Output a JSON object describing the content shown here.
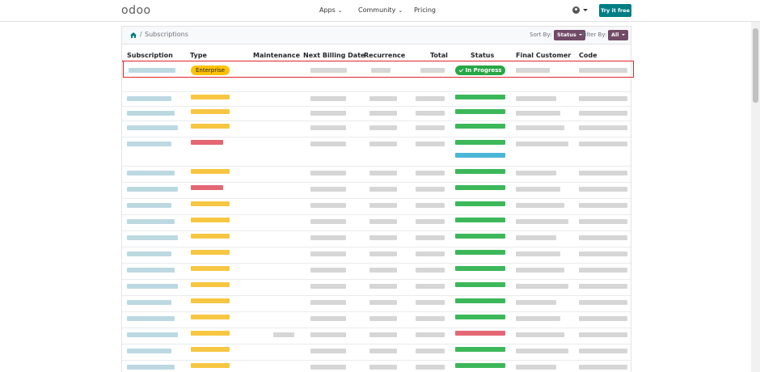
{
  "nav": {
    "logo": "odoo",
    "links": [
      {
        "label": "Apps",
        "has_dropdown": true
      },
      {
        "label": "Community",
        "has_dropdown": true
      },
      {
        "label": "Pricing",
        "has_dropdown": false
      }
    ],
    "user_icon": "user-circle-icon",
    "cta_label": "Try it free"
  },
  "colors": {
    "brand_purple": "#714b67",
    "cta_teal": "#017e84",
    "enterprise_badge": "#ffc107",
    "in_progress_badge": "#28a745",
    "highlight_border": "#e0242a"
  },
  "breadcrumb": {
    "home_icon": "home-icon",
    "separator": "/",
    "current": "Subscriptions"
  },
  "toolbar": {
    "sort_label": "Sort By:",
    "sort_value": "Status",
    "filter_label": "Filter By:",
    "filter_value": "All"
  },
  "table": {
    "columns": [
      "Subscription",
      "Type",
      "Maintenance",
      "Next Billing Date",
      "Recurrence",
      "Total",
      "Status",
      "Final Customer",
      "Code"
    ],
    "first_row": {
      "type": "Enterprise",
      "status": "In Progress"
    },
    "obscured_rows": 20
  }
}
